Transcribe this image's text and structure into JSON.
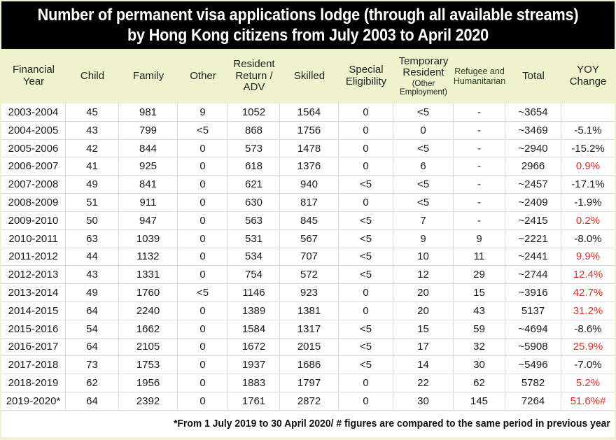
{
  "title": {
    "line1": "Number of permanent visa applications lodge (through all available streams)",
    "line2": "by Hong Kong citizens from July 2003 to April 2020"
  },
  "table": {
    "header_columns": [
      {
        "id": "financial-year",
        "label": "Financial Year"
      },
      {
        "id": "child",
        "label": "Child"
      },
      {
        "id": "family",
        "label": "Family"
      },
      {
        "id": "other",
        "label": "Other"
      },
      {
        "id": "resident-return",
        "label": "Resident Return / ADV"
      },
      {
        "id": "skilled",
        "label": "Skilled"
      },
      {
        "id": "special-eligibility",
        "label": "Special Eligibility"
      },
      {
        "id": "temporary-resident",
        "label": "Temporary Resident",
        "sublabel": "(Other Employment)"
      },
      {
        "id": "refugee-humanitarian",
        "label": "Refugee and Humanitarian",
        "small": true
      },
      {
        "id": "total",
        "label": "Total"
      },
      {
        "id": "yoy-change",
        "label": "YOY Change"
      }
    ],
    "yoy_red_rows": [
      3,
      6,
      8,
      9,
      10,
      11,
      13,
      15,
      16
    ]
  },
  "chart_data": {
    "type": "table",
    "title": "Number of permanent visa applications lodge (through all available streams) by Hong Kong citizens from July 2003 to April 2020",
    "columns": [
      "Financial Year",
      "Child",
      "Family",
      "Other",
      "Resident Return / ADV",
      "Skilled",
      "Special Eligibility",
      "Temporary Resident (Other Employment)",
      "Refugee and Humanitarian",
      "Total",
      "YOY Change"
    ],
    "rows": [
      [
        "2003-2004",
        "45",
        "981",
        "9",
        "1052",
        "1564",
        "0",
        "<5",
        "-",
        "~3654",
        ""
      ],
      [
        "2004-2005",
        "43",
        "799",
        "<5",
        "868",
        "1756",
        "0",
        "0",
        "-",
        "~3469",
        "-5.1%"
      ],
      [
        "2005-2006",
        "42",
        "844",
        "0",
        "573",
        "1478",
        "0",
        "<5",
        "-",
        "~2940",
        "-15.2%"
      ],
      [
        "2006-2007",
        "41",
        "925",
        "0",
        "618",
        "1376",
        "0",
        "6",
        "-",
        "2966",
        "0.9%"
      ],
      [
        "2007-2008",
        "49",
        "841",
        "0",
        "621",
        "940",
        "<5",
        "<5",
        "-",
        "~2457",
        "-17.1%"
      ],
      [
        "2008-2009",
        "51",
        "911",
        "0",
        "630",
        "817",
        "0",
        "<5",
        "-",
        "~2409",
        "-1.9%"
      ],
      [
        "2009-2010",
        "50",
        "947",
        "0",
        "563",
        "845",
        "<5",
        "7",
        "-",
        "~2415",
        "0.2%"
      ],
      [
        "2010-2011",
        "63",
        "1039",
        "0",
        "531",
        "567",
        "<5",
        "9",
        "9",
        "~2221",
        "-8.0%"
      ],
      [
        "2011-2012",
        "44",
        "1132",
        "0",
        "534",
        "707",
        "<5",
        "10",
        "11",
        "~2441",
        "9.9%"
      ],
      [
        "2012-2013",
        "43",
        "1331",
        "0",
        "754",
        "572",
        "<5",
        "12",
        "29",
        "~2744",
        "12.4%"
      ],
      [
        "2013-2014",
        "49",
        "1760",
        "<5",
        "1146",
        "923",
        "0",
        "20",
        "15",
        "~3916",
        "42.7%"
      ],
      [
        "2014-2015",
        "64",
        "2240",
        "0",
        "1389",
        "1381",
        "0",
        "20",
        "43",
        "5137",
        "31.2%"
      ],
      [
        "2015-2016",
        "54",
        "1662",
        "0",
        "1584",
        "1317",
        "<5",
        "15",
        "59",
        "~4694",
        "-8.6%"
      ],
      [
        "2016-2017",
        "64",
        "2105",
        "0",
        "1672",
        "2015",
        "<5",
        "17",
        "32",
        "~5908",
        "25.9%"
      ],
      [
        "2017-2018",
        "73",
        "1753",
        "0",
        "1937",
        "1686",
        "<5",
        "14",
        "30",
        "~5496",
        "-7.0%"
      ],
      [
        "2018-2019",
        "62",
        "1956",
        "0",
        "1883",
        "1797",
        "0",
        "22",
        "62",
        "5782",
        "5.2%"
      ],
      [
        "2019-2020*",
        "64",
        "2392",
        "0",
        "1761",
        "2872",
        "0",
        "30",
        "145",
        "7264",
        "51.6%#"
      ]
    ],
    "footnote": "*From 1 July 2019 to 30 April 2020/ # figures are compared to the same period in previous year"
  },
  "footnote": "*From 1 July 2019 to 30 April 2020/ # figures are compared to the same period in previous year",
  "colors": {
    "title_bg": "#000000",
    "title_text": "#ffffff",
    "header_bg": "#eef3ce",
    "grid_line": "#dadada",
    "yoy_positive_red": "#d8342b",
    "body_text": "#1b1b1b"
  }
}
